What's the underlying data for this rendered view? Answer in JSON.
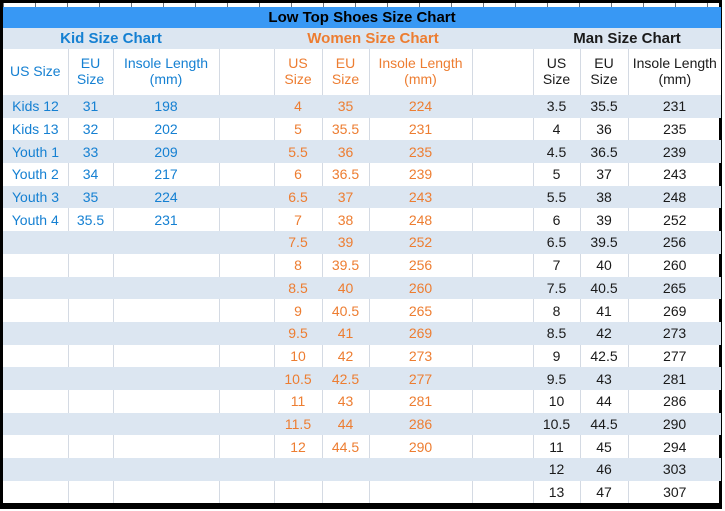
{
  "table_title": "Low Top Shoes Size Chart",
  "column_headers": {
    "us": "US Size",
    "eu": "EU Size",
    "insole": "Insole Length (mm)"
  },
  "layout": {
    "total_rows": 18
  },
  "colors": {
    "title_bar": "#3898F4",
    "band_blue": "#DCE6F1",
    "grid_line": "#D4DAE3",
    "border": "#000000"
  },
  "sections": {
    "kid": {
      "title": "Kid Size Chart",
      "accent": "#1580D2",
      "rows": [
        [
          "Kids 12",
          "31",
          "198"
        ],
        [
          "Kids 13",
          "32",
          "202"
        ],
        [
          "Youth 1",
          "33",
          "209"
        ],
        [
          "Youth 2",
          "34",
          "217"
        ],
        [
          "Youth 3",
          "35",
          "224"
        ],
        [
          "Youth 4",
          "35.5",
          "231"
        ]
      ]
    },
    "women": {
      "title": "Women Size Chart",
      "accent": "#ED7D31",
      "rows": [
        [
          "4",
          "35",
          "224"
        ],
        [
          "5",
          "35.5",
          "231"
        ],
        [
          "5.5",
          "36",
          "235"
        ],
        [
          "6",
          "36.5",
          "239"
        ],
        [
          "6.5",
          "37",
          "243"
        ],
        [
          "7",
          "38",
          "248"
        ],
        [
          "7.5",
          "39",
          "252"
        ],
        [
          "8",
          "39.5",
          "256"
        ],
        [
          "8.5",
          "40",
          "260"
        ],
        [
          "9",
          "40.5",
          "265"
        ],
        [
          "9.5",
          "41",
          "269"
        ],
        [
          "10",
          "42",
          "273"
        ],
        [
          "10.5",
          "42.5",
          "277"
        ],
        [
          "11",
          "43",
          "281"
        ],
        [
          "11.5",
          "44",
          "286"
        ],
        [
          "12",
          "44.5",
          "290"
        ]
      ]
    },
    "man": {
      "title": "Man Size Chart",
      "accent": "#1A1A1A",
      "rows": [
        [
          "3.5",
          "35.5",
          "231"
        ],
        [
          "4",
          "36",
          "235"
        ],
        [
          "4.5",
          "36.5",
          "239"
        ],
        [
          "5",
          "37",
          "243"
        ],
        [
          "5.5",
          "38",
          "248"
        ],
        [
          "6",
          "39",
          "252"
        ],
        [
          "6.5",
          "39.5",
          "256"
        ],
        [
          "7",
          "40",
          "260"
        ],
        [
          "7.5",
          "40.5",
          "265"
        ],
        [
          "8",
          "41",
          "269"
        ],
        [
          "8.5",
          "42",
          "273"
        ],
        [
          "9",
          "42.5",
          "277"
        ],
        [
          "9.5",
          "43",
          "281"
        ],
        [
          "10",
          "44",
          "286"
        ],
        [
          "10.5",
          "44.5",
          "290"
        ],
        [
          "11",
          "45",
          "294"
        ],
        [
          "12",
          "46",
          "303"
        ],
        [
          "13",
          "47",
          "307"
        ]
      ]
    }
  }
}
